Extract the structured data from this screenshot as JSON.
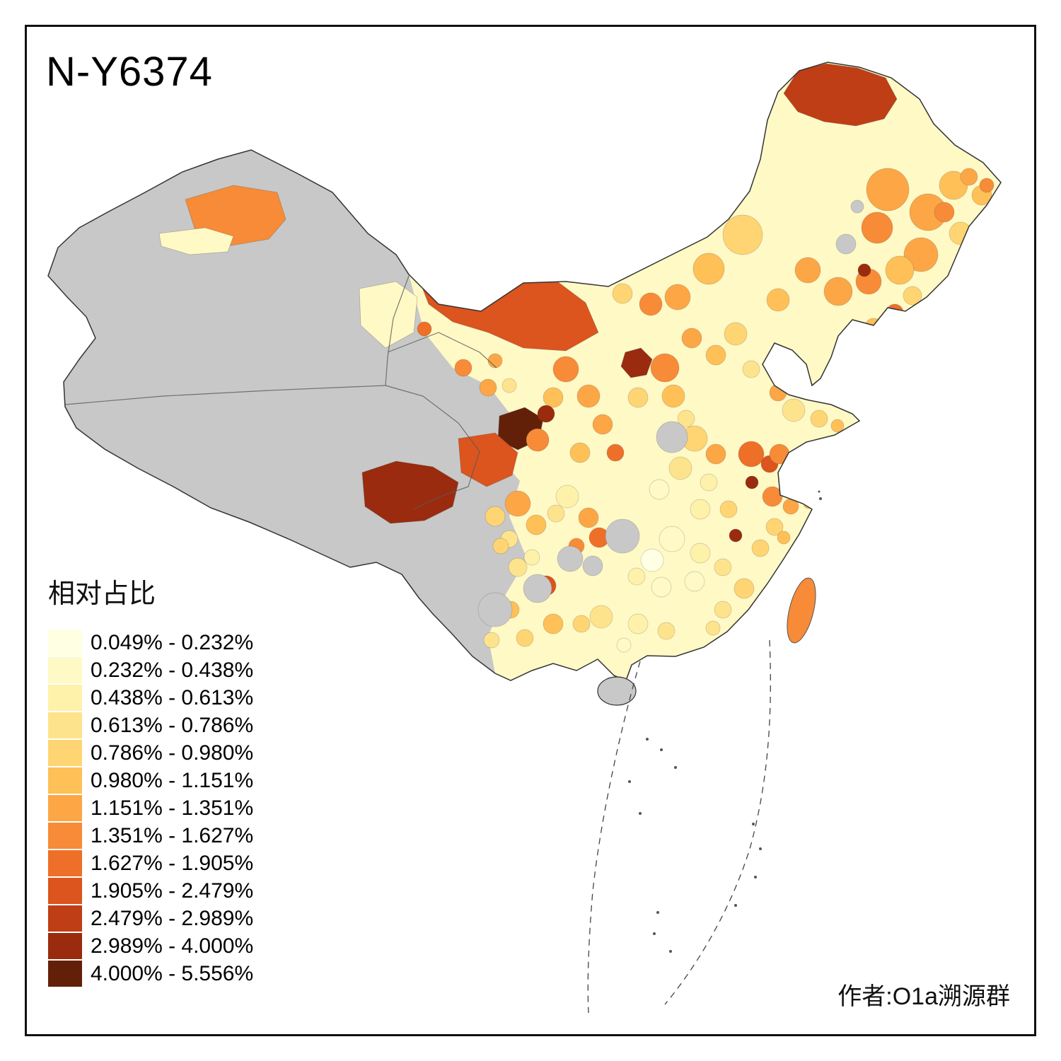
{
  "title": "N-Y6374",
  "legend": {
    "title": "相对占比",
    "classes": [
      {
        "label": "0.049% - 0.232%",
        "color": "#FFFFE3"
      },
      {
        "label": "0.232% - 0.438%",
        "color": "#FFF9C6"
      },
      {
        "label": "0.438% - 0.613%",
        "color": "#FEF1AA"
      },
      {
        "label": "0.613% - 0.786%",
        "color": "#FEE38D"
      },
      {
        "label": "0.786% - 0.980%",
        "color": "#FED572"
      },
      {
        "label": "0.980% - 1.151%",
        "color": "#FEC057"
      },
      {
        "label": "1.151% - 1.351%",
        "color": "#FCA646"
      },
      {
        "label": "1.351% - 1.627%",
        "color": "#F78B37"
      },
      {
        "label": "1.627% - 1.905%",
        "color": "#EE6F28"
      },
      {
        "label": "1.905% - 2.479%",
        "color": "#DC541E"
      },
      {
        "label": "2.479% - 2.989%",
        "color": "#BF3E15"
      },
      {
        "label": "2.989% - 4.000%",
        "color": "#9A2B0E"
      },
      {
        "label": "4.000% - 5.556%",
        "color": "#632008"
      }
    ]
  },
  "credit": "作者:O1a溯源群",
  "map": {
    "no_data_color": "#C8C8C8",
    "land_border_color": "#333333",
    "sea_dash_color": "#444444"
  }
}
